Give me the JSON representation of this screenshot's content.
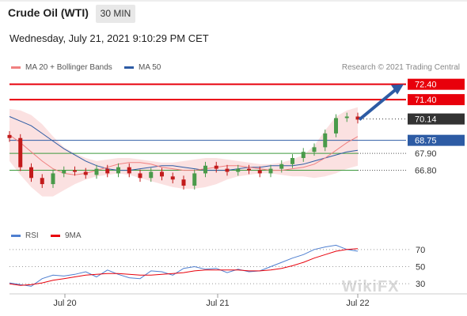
{
  "header": {
    "title": "Crude Oil (WTI)",
    "timeframe": "30 MIN",
    "datetime": "Wednesday, July 21, 2021 9:10:29 PM CET"
  },
  "legend": {
    "ma20": "MA 20 + Bollinger Bands",
    "ma50": "MA 50",
    "credit": "Research © 2021 Trading Central"
  },
  "rsi_legend": {
    "rsi": "RSI",
    "ma9": "9MA"
  },
  "watermark": "WikiFX",
  "colors": {
    "red": "#e8000b",
    "blue": "#2d5ba4",
    "green": "#3c9a3c",
    "ma20": "#f08080",
    "band": "#fadada",
    "rsi": "#4f7fd0",
    "candle_up": "#4a9a4a",
    "candle_down": "#c21b1b",
    "last_price_bg": "#333333"
  },
  "chart_data": [
    {
      "type": "line",
      "x_tick_labels": [
        "Jul 20",
        "Jul 21",
        "Jul 22"
      ],
      "price_levels": [
        {
          "value": 72.4,
          "label": "72.40",
          "kind": "resistance"
        },
        {
          "value": 71.4,
          "label": "71.40",
          "kind": "resistance"
        },
        {
          "value": 70.14,
          "label": "70.14",
          "kind": "last-price"
        },
        {
          "value": 68.75,
          "label": "68.75",
          "kind": "pivot"
        },
        {
          "value": 67.9,
          "label": "67.90",
          "kind": "support"
        },
        {
          "value": 66.8,
          "label": "66.80",
          "kind": "support"
        }
      ],
      "forecast_arrow": {
        "from": 70.1,
        "to": 72.4
      },
      "ylim": [
        64.0,
        73.0
      ],
      "series": [
        {
          "name": "MA 20 + Bollinger Bands",
          "values": [
            69.1,
            68.6,
            68.0,
            67.4,
            66.9,
            66.6,
            66.5,
            66.6,
            66.8,
            67.0,
            67.2,
            67.3,
            67.3,
            67.2,
            67.0,
            66.9,
            66.8,
            66.8,
            66.9,
            67.0,
            67.1,
            67.1,
            67.0,
            66.9,
            66.8,
            66.8,
            66.9,
            67.0,
            67.2,
            67.6,
            68.1,
            68.6,
            69.0
          ]
        },
        {
          "name": "MA 50",
          "values": [
            70.3,
            70.0,
            69.7,
            69.2,
            68.7,
            68.2,
            67.8,
            67.4,
            67.1,
            66.9,
            66.8,
            66.8,
            66.9,
            67.0,
            67.1,
            67.1,
            67.0,
            66.9,
            66.8,
            66.8,
            66.8,
            66.9,
            67.0,
            67.0,
            67.1,
            67.1,
            67.1,
            67.2,
            67.4,
            67.6,
            67.8,
            68.0,
            68.1
          ]
        },
        {
          "name": "Upper band",
          "values": [
            70.8,
            70.7,
            70.4,
            69.8,
            69.0,
            68.3,
            67.9,
            67.6,
            67.4,
            67.5,
            67.6,
            67.6,
            67.5,
            67.4,
            67.3,
            67.3,
            67.4,
            67.5,
            67.6,
            67.6,
            67.5,
            67.4,
            67.3,
            67.2,
            67.2,
            67.3,
            67.5,
            67.8,
            68.4,
            69.4,
            70.3,
            70.7,
            70.9
          ]
        },
        {
          "name": "Lower band",
          "values": [
            67.4,
            66.5,
            65.7,
            65.1,
            65.1,
            65.5,
            65.9,
            66.2,
            66.4,
            66.5,
            66.6,
            66.5,
            66.3,
            66.1,
            65.9,
            65.7,
            65.6,
            65.6,
            65.7,
            65.9,
            66.2,
            66.4,
            66.5,
            66.6,
            66.6,
            66.5,
            66.4,
            66.4,
            66.3,
            66.4,
            66.6,
            66.9,
            67.1
          ]
        },
        {
          "name": "Price",
          "values": [
            68.9,
            67.0,
            66.3,
            65.9,
            66.6,
            66.8,
            66.7,
            66.5,
            66.9,
            66.6,
            67.0,
            66.6,
            66.3,
            66.7,
            66.4,
            66.2,
            65.8,
            66.6,
            67.1,
            66.9,
            66.7,
            66.9,
            66.8,
            66.6,
            66.9,
            67.2,
            67.6,
            68.0,
            68.3,
            69.2,
            70.2,
            70.3,
            70.1
          ]
        }
      ]
    },
    {
      "type": "line",
      "y_tick_labels": [
        "70",
        "50",
        "30"
      ],
      "ylim": [
        20,
        80
      ],
      "series": [
        {
          "name": "RSI",
          "values": [
            31,
            29,
            27,
            36,
            40,
            39,
            41,
            44,
            38,
            46,
            41,
            37,
            36,
            45,
            44,
            40,
            48,
            50,
            47,
            48,
            43,
            47,
            44,
            45,
            50,
            55,
            60,
            64,
            70,
            73,
            75,
            70,
            68
          ]
        },
        {
          "name": "9MA",
          "values": [
            30,
            28,
            29,
            31,
            34,
            36,
            38,
            40,
            41,
            42,
            42,
            41,
            40,
            40,
            41,
            42,
            43,
            45,
            46,
            46,
            46,
            46,
            45,
            45,
            46,
            48,
            51,
            55,
            60,
            64,
            68,
            70,
            71
          ]
        }
      ]
    }
  ]
}
